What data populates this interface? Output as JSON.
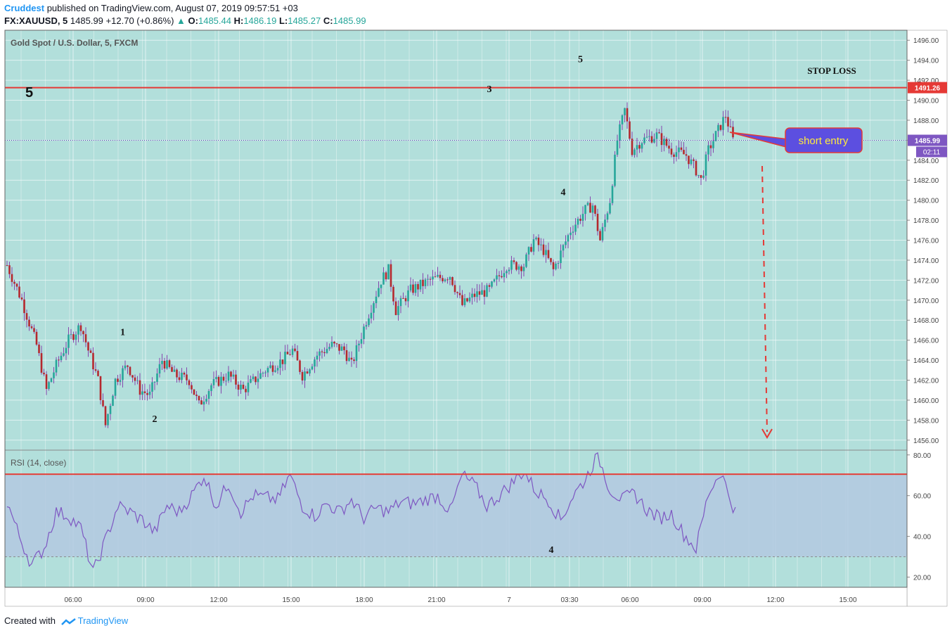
{
  "header": {
    "author": "Cruddest",
    "published": "published on TradingView.com, August 07, 2019 09:57:51 +03",
    "symbol": "FX:XAUUSD, 5",
    "last": "1485.99",
    "change": "+12.70 (+0.86%)",
    "o_label": "O:",
    "o_val": "1485.44",
    "h_label": "H:",
    "h_val": "1486.19",
    "l_label": "L:",
    "l_val": "1485.27",
    "c_label": "C:",
    "c_val": "1485.99"
  },
  "footer": {
    "created": "Created with",
    "brand": "TradingView"
  },
  "colors": {
    "bg": "#b2dfdb",
    "rsiBand": "#b3c9e0",
    "up": "#26a69a",
    "down": "#b5282e",
    "wick": "#7b1fa2",
    "red": "#e53935",
    "rsiLine": "#7e57c2",
    "entryBox": "#5c4fe0",
    "entryText": "#ffeb3b"
  },
  "chart_data": [
    {
      "type": "candlestick",
      "title": "Gold Spot / U.S. Dollar, 5, FXCM",
      "ylim": [
        1455,
        1497
      ],
      "yticks": [
        "1496.00",
        "1494.00",
        "1492.00",
        "1490.00",
        "1488.00",
        "1486.00",
        "1484.00",
        "1482.00",
        "1480.00",
        "1478.00",
        "1476.00",
        "1474.00",
        "1472.00",
        "1470.00",
        "1468.00",
        "1466.00",
        "1464.00",
        "1462.00",
        "1460.00",
        "1458.00",
        "1456.00"
      ],
      "xticks": [
        "06:00",
        "09:00",
        "12:00",
        "15:00",
        "18:00",
        "21:00",
        "7",
        "03:30",
        "06:00",
        "09:00",
        "12:00",
        "15:00"
      ],
      "price_path": [
        [
          0,
          1473.5
        ],
        [
          6,
          1470
        ],
        [
          12,
          1465.5
        ],
        [
          16,
          1461
        ],
        [
          20,
          1463.5
        ],
        [
          25,
          1466
        ],
        [
          30,
          1467.5
        ],
        [
          33,
          1465
        ],
        [
          37,
          1462
        ],
        [
          40,
          1457.5
        ],
        [
          44,
          1462
        ],
        [
          49,
          1463.5
        ],
        [
          54,
          1461
        ],
        [
          58,
          1460.5
        ],
        [
          63,
          1464
        ],
        [
          68,
          1462.5
        ],
        [
          74,
          1462
        ],
        [
          78,
          1459.5
        ],
        [
          83,
          1461.5
        ],
        [
          90,
          1462.5
        ],
        [
          96,
          1461
        ],
        [
          105,
          1463
        ],
        [
          112,
          1464
        ],
        [
          116,
          1465
        ],
        [
          120,
          1462.5
        ],
        [
          126,
          1464.5
        ],
        [
          132,
          1465.5
        ],
        [
          137,
          1465
        ],
        [
          140,
          1463.5
        ],
        [
          146,
          1468
        ],
        [
          152,
          1472
        ],
        [
          155,
          1473
        ],
        [
          158,
          1469
        ],
        [
          164,
          1471
        ],
        [
          172,
          1472
        ],
        [
          180,
          1472.5
        ],
        [
          185,
          1469.5
        ],
        [
          190,
          1470.5
        ],
        [
          196,
          1471
        ],
        [
          203,
          1473.5
        ],
        [
          210,
          1473.5
        ],
        [
          214,
          1476
        ],
        [
          218,
          1475
        ],
        [
          222,
          1473
        ],
        [
          229,
          1477
        ],
        [
          235,
          1479
        ],
        [
          238,
          1479.5
        ],
        [
          241,
          1476
        ],
        [
          245,
          1480
        ],
        [
          248,
          1486
        ],
        [
          251,
          1489
        ],
        [
          254,
          1485
        ],
        [
          258,
          1486
        ],
        [
          264,
          1486.5
        ],
        [
          270,
          1485
        ],
        [
          276,
          1484.5
        ],
        [
          280,
          1483
        ],
        [
          282,
          1482
        ],
        [
          285,
          1485
        ],
        [
          289,
          1487
        ],
        [
          292,
          1488.5
        ],
        [
          295,
          1486
        ]
      ],
      "horizontal_line": {
        "value": 1491.26,
        "label": "1491.26",
        "name": "STOP LOSS"
      },
      "last_price": {
        "value": 1485.99,
        "label": "1485.99",
        "countdown": "02:11"
      },
      "annotations": [
        {
          "text": "5",
          "kind": "big"
        },
        {
          "text": "1",
          "bar": 47,
          "price": 1466.5
        },
        {
          "text": "2",
          "bar": 60,
          "price": 1457.8
        },
        {
          "text": "3",
          "bar": 196,
          "price": 1490.8
        },
        {
          "text": "4",
          "bar": 226,
          "price": 1480.5
        },
        {
          "text": "5",
          "bar": 233,
          "price": 1493.8
        },
        {
          "text": "STOP LOSS",
          "kind": "label"
        },
        {
          "text": "short entry",
          "kind": "callout"
        }
      ]
    },
    {
      "type": "line",
      "title": "RSI (14, close)",
      "ylim": [
        15,
        82
      ],
      "yticks": [
        "80.00",
        "60.00",
        "40.00",
        "20.00"
      ],
      "band": [
        30,
        70
      ],
      "overbought_line": 70.5,
      "values": [
        [
          0,
          57
        ],
        [
          5,
          40
        ],
        [
          10,
          26
        ],
        [
          15,
          34
        ],
        [
          20,
          52
        ],
        [
          25,
          50
        ],
        [
          30,
          44
        ],
        [
          35,
          22
        ],
        [
          40,
          38
        ],
        [
          45,
          55
        ],
        [
          50,
          52
        ],
        [
          55,
          48
        ],
        [
          60,
          42
        ],
        [
          65,
          55
        ],
        [
          70,
          52
        ],
        [
          75,
          60
        ],
        [
          80,
          70
        ],
        [
          85,
          55
        ],
        [
          90,
          66
        ],
        [
          95,
          52
        ],
        [
          100,
          60
        ],
        [
          110,
          58
        ],
        [
          115,
          70
        ],
        [
          120,
          55
        ],
        [
          125,
          50
        ],
        [
          130,
          56
        ],
        [
          135,
          52
        ],
        [
          140,
          58
        ],
        [
          145,
          49
        ],
        [
          150,
          54
        ],
        [
          155,
          52
        ],
        [
          160,
          57
        ],
        [
          165,
          56
        ],
        [
          170,
          58
        ],
        [
          175,
          60
        ],
        [
          180,
          52
        ],
        [
          185,
          70
        ],
        [
          190,
          65
        ],
        [
          195,
          55
        ],
        [
          200,
          60
        ],
        [
          205,
          66
        ],
        [
          210,
          72
        ],
        [
          215,
          62
        ],
        [
          220,
          58
        ],
        [
          225,
          48
        ],
        [
          230,
          60
        ],
        [
          235,
          68
        ],
        [
          240,
          80
        ],
        [
          245,
          63
        ],
        [
          250,
          58
        ],
        [
          255,
          61
        ],
        [
          260,
          53
        ],
        [
          265,
          49
        ],
        [
          270,
          51
        ],
        [
          275,
          41
        ],
        [
          280,
          34
        ],
        [
          285,
          61
        ],
        [
          290,
          72
        ],
        [
          294,
          58
        ],
        [
          296,
          52
        ]
      ],
      "annotations": [
        {
          "text": "4"
        }
      ]
    }
  ]
}
